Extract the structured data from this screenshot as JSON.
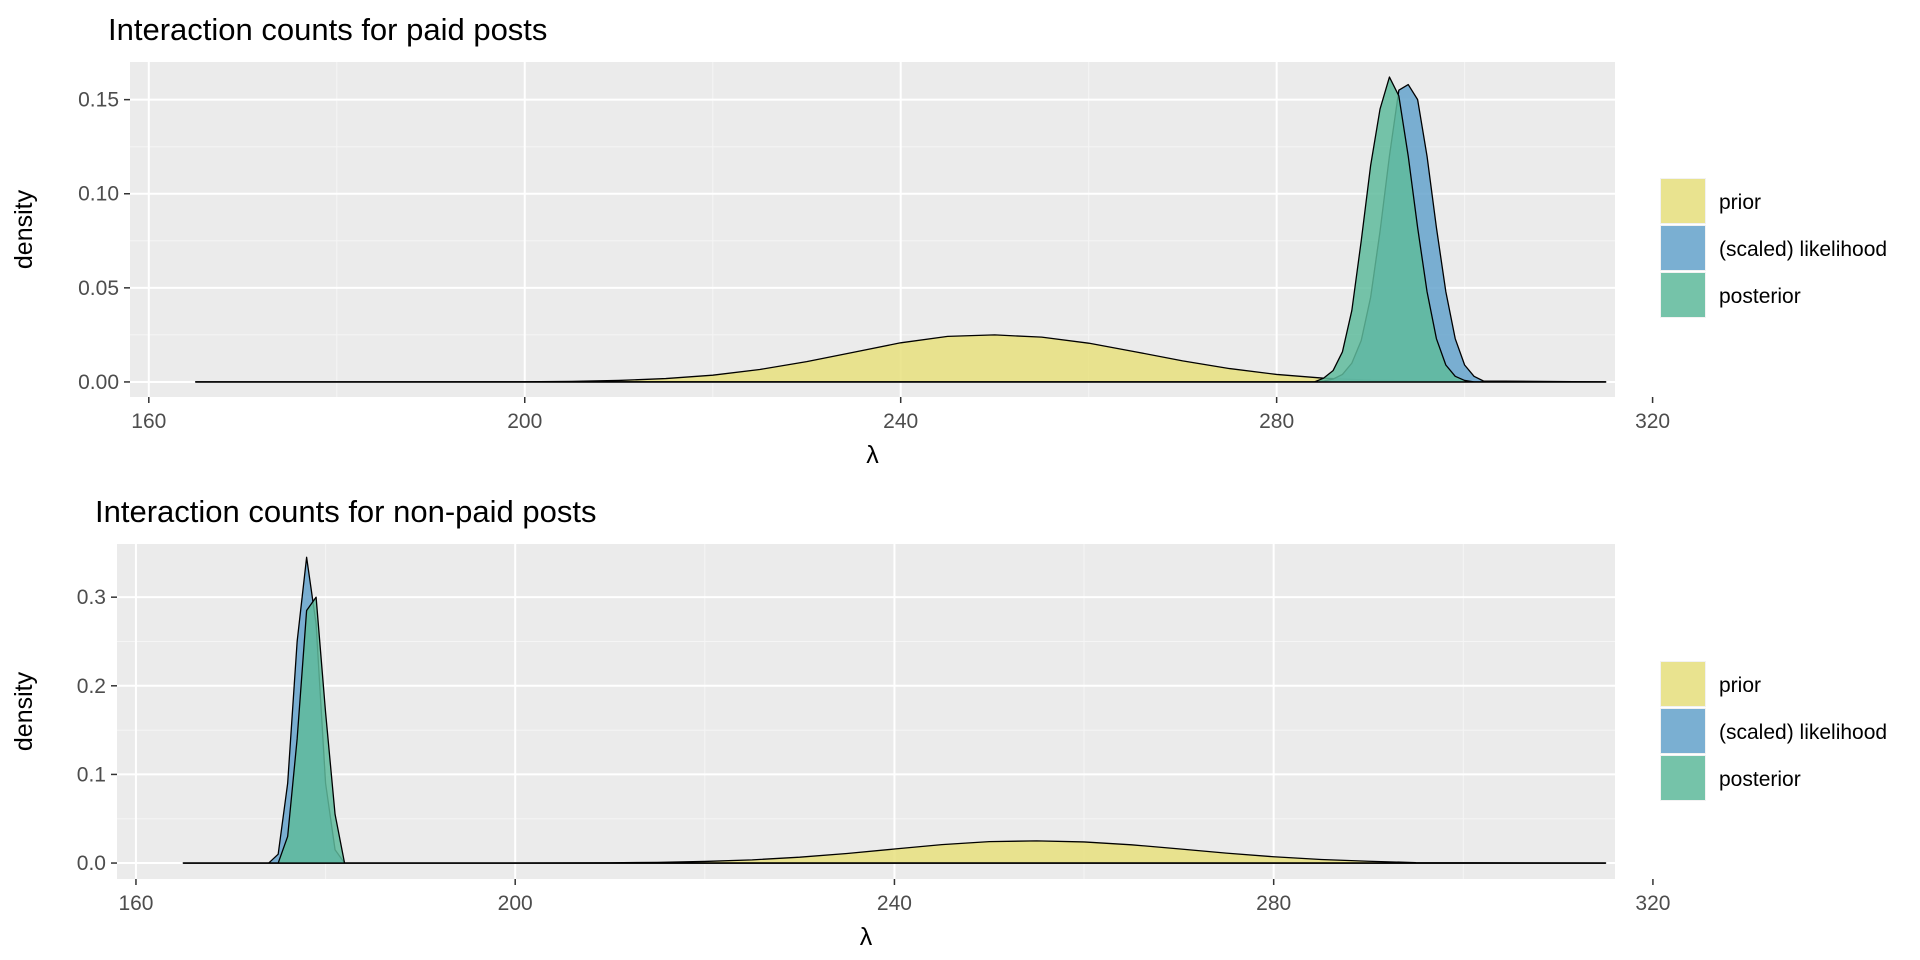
{
  "chart_data": [
    {
      "type": "area",
      "title": "Interaction counts for paid posts",
      "xlabel": "λ",
      "ylabel": "density",
      "xlim": [
        158,
        316
      ],
      "ylim": [
        -0.008,
        0.17
      ],
      "x_ticks": [
        160,
        200,
        240,
        280,
        320
      ],
      "x_tick_labels": [
        "160",
        "200",
        "240",
        "280",
        "320"
      ],
      "y_ticks": [
        0,
        0.05,
        0.1,
        0.15
      ],
      "y_tick_labels": [
        "0.00",
        "0.05",
        "0.10",
        "0.15"
      ],
      "grid": true,
      "legend": "right",
      "series": [
        {
          "name": "prior",
          "color": "#e8e07e",
          "x": [
            165,
            200,
            205,
            210,
            215,
            220,
            225,
            230,
            235,
            240,
            245,
            250,
            255,
            260,
            265,
            270,
            275,
            280,
            285,
            290,
            300,
            315
          ],
          "y": [
            0,
            0.0001,
            0.0003,
            0.0008,
            0.0018,
            0.0036,
            0.0066,
            0.0108,
            0.0158,
            0.0208,
            0.0242,
            0.025,
            0.0238,
            0.0206,
            0.016,
            0.0112,
            0.0071,
            0.004,
            0.002,
            0.0009,
            0.0001,
            0
          ]
        },
        {
          "name": "(scaled) likelihood",
          "color": "#65a3cc",
          "x": [
            165,
            284,
            285,
            286,
            287,
            288,
            289,
            290,
            291,
            292,
            293,
            294,
            295,
            296,
            297,
            298,
            299,
            300,
            301,
            302,
            315
          ],
          "y": [
            0,
            0,
            0.0005,
            0.0015,
            0.004,
            0.01,
            0.022,
            0.045,
            0.08,
            0.12,
            0.155,
            0.158,
            0.15,
            0.12,
            0.082,
            0.048,
            0.023,
            0.009,
            0.003,
            0.0005,
            0
          ]
        },
        {
          "name": "posterior",
          "color": "#5fbb9c",
          "x": [
            165,
            284,
            285,
            286,
            287,
            288,
            289,
            290,
            291,
            292,
            293,
            294,
            295,
            296,
            297,
            298,
            299,
            300,
            301,
            315
          ],
          "y": [
            0,
            0,
            0.002,
            0.006,
            0.016,
            0.038,
            0.075,
            0.115,
            0.145,
            0.162,
            0.152,
            0.12,
            0.082,
            0.048,
            0.023,
            0.009,
            0.003,
            0.0008,
            0,
            0
          ]
        }
      ]
    },
    {
      "type": "area",
      "title": "Interaction counts for non-paid posts",
      "xlabel": "λ",
      "ylabel": "density",
      "xlim": [
        158,
        316
      ],
      "ylim": [
        -0.018,
        0.36
      ],
      "x_ticks": [
        160,
        200,
        240,
        280,
        320
      ],
      "x_tick_labels": [
        "160",
        "200",
        "240",
        "280",
        "320"
      ],
      "y_ticks": [
        0,
        0.1,
        0.2,
        0.3
      ],
      "y_tick_labels": [
        "0.0",
        "0.1",
        "0.2",
        "0.3"
      ],
      "grid": true,
      "legend": "right",
      "series": [
        {
          "name": "prior",
          "color": "#e8e07e",
          "x": [
            165,
            205,
            210,
            215,
            220,
            225,
            230,
            235,
            240,
            245,
            250,
            255,
            260,
            265,
            270,
            275,
            280,
            285,
            290,
            295,
            315
          ],
          "y": [
            0,
            0.0001,
            0.0003,
            0.0008,
            0.0018,
            0.0036,
            0.0066,
            0.0108,
            0.0158,
            0.0208,
            0.0242,
            0.025,
            0.0238,
            0.0206,
            0.016,
            0.0112,
            0.0071,
            0.004,
            0.002,
            0.0005,
            0
          ]
        },
        {
          "name": "(scaled) likelihood",
          "color": "#65a3cc",
          "x": [
            165,
            174,
            175,
            176,
            177,
            178,
            179,
            180,
            181,
            182,
            315
          ],
          "y": [
            0,
            0,
            0.01,
            0.09,
            0.25,
            0.345,
            0.27,
            0.09,
            0.015,
            0,
            0
          ]
        },
        {
          "name": "posterior",
          "color": "#5fbb9c",
          "x": [
            165,
            175,
            176,
            177,
            178,
            179,
            180,
            181,
            182,
            315
          ],
          "y": [
            0,
            0,
            0.03,
            0.14,
            0.285,
            0.3,
            0.17,
            0.055,
            0,
            0
          ]
        }
      ]
    }
  ]
}
